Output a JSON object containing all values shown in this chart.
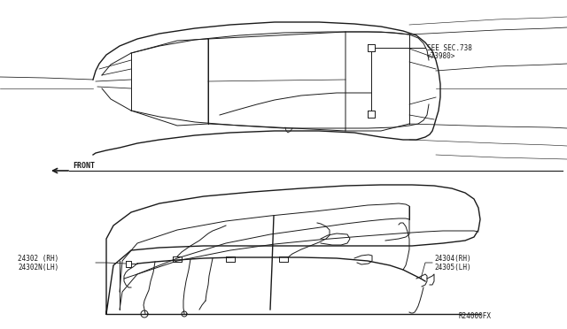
{
  "background_color": "#ffffff",
  "line_color": "#1a1a1a",
  "labels": {
    "see_sec": "SEE SEC.738",
    "see_sec2": "<73980>",
    "front": "FRONT",
    "left_top1": "24302 (RH)",
    "left_top2": "24302N(LH)",
    "right_top1": "24304(RH)",
    "right_top2": "24305(LH)",
    "part_num": "R24000FX"
  },
  "figsize": [
    6.4,
    3.72
  ],
  "dpi": 100
}
